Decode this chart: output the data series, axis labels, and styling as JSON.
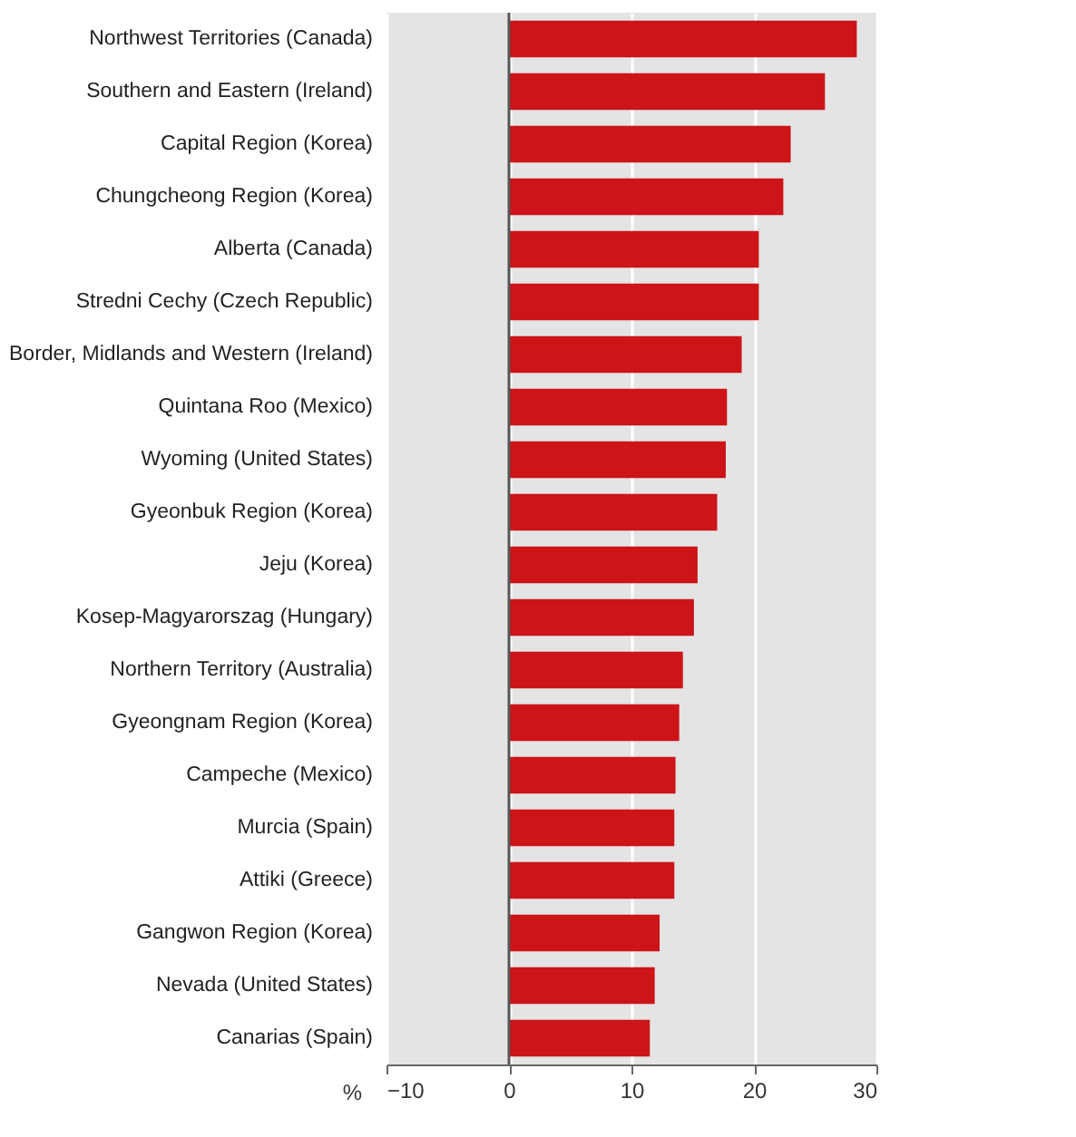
{
  "chart_data": {
    "type": "bar",
    "orientation": "horizontal",
    "xlabel": "%",
    "categories": [
      "Northwest Territories (Canada)",
      "Southern and Eastern (Ireland)",
      "Capital Region (Korea)",
      "Chungcheong Region (Korea)",
      "Alberta (Canada)",
      "Stredni Cechy (Czech Republic)",
      "Border, Midlands and Western (Ireland)",
      "Quintana Roo (Mexico)",
      "Wyoming (United States)",
      "Gyeonbuk Region (Korea)",
      "Jeju (Korea)",
      "Kosep-Magyarorszag (Hungary)",
      "Northern Territory (Australia)",
      "Gyeongnam Region (Korea)",
      "Campeche (Mexico)",
      "Murcia (Spain)",
      "Attiki (Greece)",
      "Gangwon Region (Korea)",
      "Nevada (United States)",
      "Canarias  (Spain)"
    ],
    "values": [
      28.4,
      25.8,
      23.0,
      22.4,
      20.4,
      20.4,
      19.0,
      17.8,
      17.7,
      17.0,
      15.4,
      15.1,
      14.2,
      13.9,
      13.6,
      13.5,
      13.5,
      12.3,
      11.9,
      11.5
    ],
    "color": "#cc1419",
    "xlim": [
      -10,
      30
    ],
    "xticks": [
      -10,
      0,
      10,
      20,
      30
    ],
    "grid": "x",
    "ref_lines": [
      {
        "axis": "x",
        "value": 0,
        "color": "#555555"
      }
    ]
  }
}
